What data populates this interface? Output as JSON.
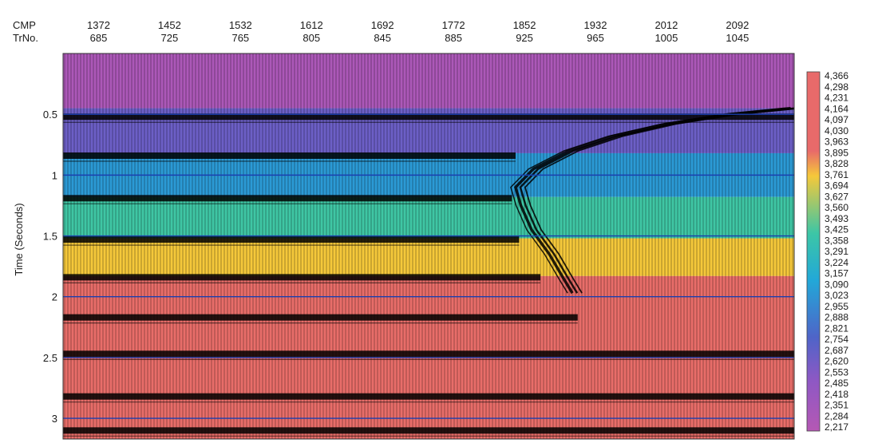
{
  "chart_data": {
    "type": "heatmap",
    "title": "",
    "top_axis_labels": [
      "CMP",
      "TrNo."
    ],
    "cmp_ticks": [
      "1372",
      "1452",
      "1532",
      "1612",
      "1692",
      "1772",
      "1852",
      "1932",
      "2012",
      "2092"
    ],
    "trace_ticks": [
      "685",
      "725",
      "765",
      "805",
      "845",
      "885",
      "925",
      "965",
      "1005",
      "1045"
    ],
    "trace_range": [
      665,
      1077
    ],
    "ylabel": "Time (Seconds)",
    "y_ticks": [
      0.5,
      1,
      1.5,
      2,
      2.5,
      3
    ],
    "y_tick_labels": [
      "0.5",
      "1",
      "1.5",
      "2",
      "2.5",
      "3"
    ],
    "ylim": [
      0.0,
      3.17
    ],
    "horizontal_gridlines": [
      0.5,
      1,
      1.5,
      2,
      2.5,
      3
    ],
    "colorbar": {
      "labels": [
        "4,366",
        "4,298",
        "4,231",
        "4,164",
        "4,097",
        "4,030",
        "3,963",
        "3,895",
        "3,828",
        "3,761",
        "3,694",
        "3,627",
        "3,560",
        "3,493",
        "3,425",
        "3,358",
        "3,291",
        "3,224",
        "3,157",
        "3,090",
        "3,023",
        "2,955",
        "2,888",
        "2,821",
        "2,754",
        "2,687",
        "2,620",
        "2,553",
        "2,485",
        "2,418",
        "2,351",
        "2,284",
        "2,217"
      ],
      "min": 2217,
      "max": 4366
    },
    "velocity_layers": [
      {
        "t_top": 0.0,
        "t_bottom": 0.45,
        "velocity": 2280
      },
      {
        "t_top": 0.45,
        "t_bottom": 0.82,
        "velocity": 2600
      },
      {
        "t_top": 0.82,
        "t_bottom": 1.18,
        "velocity": 2900
      },
      {
        "t_top": 1.18,
        "t_bottom": 1.52,
        "velocity": 3250
      },
      {
        "t_top": 1.52,
        "t_bottom": 1.83,
        "velocity": 3760
      },
      {
        "t_top": 1.83,
        "t_bottom": 3.17,
        "velocity": 4330
      }
    ],
    "reflectors": [
      {
        "t": 0.52,
        "end_trace": 1077
      },
      {
        "t": 0.84,
        "end_trace": 920
      },
      {
        "t": 1.19,
        "end_trace": 918
      },
      {
        "t": 1.53,
        "end_trace": 922
      },
      {
        "t": 1.84,
        "end_trace": 934
      },
      {
        "t": 2.17,
        "end_trace": 955
      },
      {
        "t": 2.47,
        "end_trace": 1077
      },
      {
        "t": 2.82,
        "end_trace": 1077
      },
      {
        "t": 3.1,
        "end_trace": 1077
      }
    ],
    "salt_flank": [
      {
        "trace": 1075,
        "t": 0.45
      },
      {
        "trace": 1040,
        "t": 0.5
      },
      {
        "trace": 1005,
        "t": 0.58
      },
      {
        "trace": 975,
        "t": 0.68
      },
      {
        "trace": 950,
        "t": 0.8
      },
      {
        "trace": 930,
        "t": 0.95
      },
      {
        "trace": 920,
        "t": 1.1
      },
      {
        "trace": 923,
        "t": 1.25
      },
      {
        "trace": 929,
        "t": 1.45
      },
      {
        "trace": 939,
        "t": 1.65
      },
      {
        "trace": 947,
        "t": 1.85
      },
      {
        "trace": 952,
        "t": 1.97
      }
    ]
  }
}
